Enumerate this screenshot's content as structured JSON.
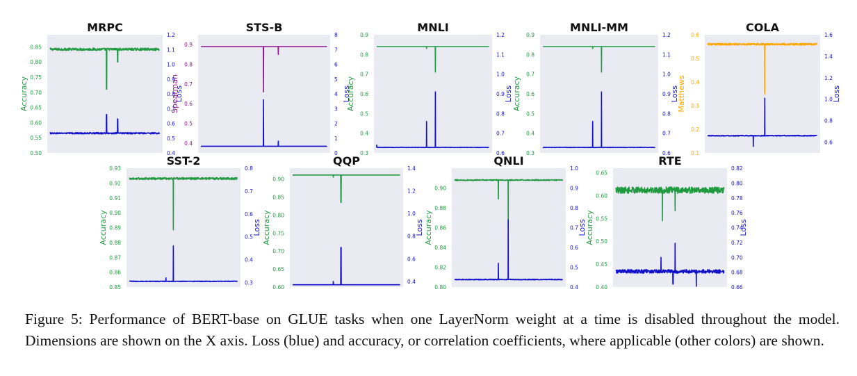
{
  "colors": {
    "loss": "#1010cc",
    "green": "#1f9a3f",
    "purple": "#8b168b",
    "orange": "#ffa500",
    "panel_bg": "#eaeaf2"
  },
  "caption": {
    "text": "Figure 5: Performance of BERT-base on GLUE tasks when one LayerNorm weight at a time is disabled throughout the model. Dimensions are shown on the X axis. Loss (blue) and accuracy, or correlation coefficients, where applicable (other colors) are shown."
  },
  "chart_data": [
    {
      "type": "line",
      "title": "MRPC",
      "x_label": "",
      "x_range": [
        0,
        768
      ],
      "left": {
        "label": "Accuracy",
        "color": "green",
        "ticks": [
          "0.50",
          "0.55",
          "0.60",
          "0.65",
          "0.70",
          "0.75",
          "0.80",
          "0.85"
        ],
        "tick_values": [
          0.5,
          0.55,
          0.6,
          0.65,
          0.7,
          0.75,
          0.8,
          0.85
        ],
        "range": [
          0.5,
          0.89
        ]
      },
      "right": {
        "label": "Loss",
        "ticks": [
          "0.4",
          "0.5",
          "0.6",
          "0.7",
          "0.8",
          "0.9",
          "1.0",
          "1.1",
          "1.2"
        ],
        "tick_values": [
          0.4,
          0.5,
          0.6,
          0.7,
          0.8,
          0.9,
          1.0,
          1.1,
          1.2
        ],
        "range": [
          0.4,
          1.2
        ]
      },
      "series": [
        {
          "axis": "left",
          "color": "green",
          "base": 0.842,
          "noise": 0.004,
          "spikes": [
            [
              395,
              0.71
            ],
            [
              473,
              0.8
            ]
          ]
        },
        {
          "axis": "right",
          "color": "loss",
          "base": 0.533,
          "noise": 0.005,
          "spikes": [
            [
              395,
              0.66
            ],
            [
              473,
              0.63
            ]
          ]
        }
      ]
    },
    {
      "type": "line",
      "title": "STS-B",
      "x_label": "",
      "x_range": [
        0,
        768
      ],
      "left": {
        "label": "Spearman",
        "color": "purple",
        "ticks": [
          "0.4",
          "0.5",
          "0.6",
          "0.7",
          "0.8",
          "0.9"
        ],
        "tick_values": [
          0.4,
          0.5,
          0.6,
          0.7,
          0.8,
          0.9
        ],
        "range": [
          0.35,
          0.95
        ]
      },
      "right": {
        "label": "Loss",
        "ticks": [
          "0",
          "1",
          "2",
          "3",
          "4",
          "5",
          "6",
          "7",
          "8"
        ],
        "tick_values": [
          0,
          1,
          2,
          3,
          4,
          5,
          6,
          7,
          8
        ],
        "range": [
          0,
          8
        ]
      },
      "series": [
        {
          "axis": "left",
          "color": "purple",
          "base": 0.89,
          "noise": 0.0,
          "spikes": [
            [
              380,
              0.66
            ],
            [
              470,
              0.85
            ]
          ]
        },
        {
          "axis": "right",
          "color": "loss",
          "base": 0.45,
          "noise": 0.0,
          "spikes": [
            [
              380,
              3.6
            ],
            [
              470,
              0.8
            ]
          ]
        }
      ]
    },
    {
      "type": "line",
      "title": "MNLI",
      "x_label": "",
      "x_range": [
        0,
        768
      ],
      "left": {
        "label": "Accuracy",
        "color": "green",
        "ticks": [
          "0.3",
          "0.4",
          "0.5",
          "0.6",
          "0.7",
          "0.8",
          "0.9"
        ],
        "tick_values": [
          0.3,
          0.4,
          0.5,
          0.6,
          0.7,
          0.8,
          0.9
        ],
        "range": [
          0.3,
          0.9
        ]
      },
      "right": {
        "label": "Loss",
        "ticks": [
          "0.6",
          "0.7",
          "0.8",
          "0.9",
          "1.0",
          "1.1",
          "1.2"
        ],
        "tick_values": [
          0.6,
          0.7,
          0.8,
          0.9,
          1.0,
          1.1,
          1.2
        ],
        "range": [
          0.6,
          1.2
        ]
      },
      "series": [
        {
          "axis": "left",
          "color": "green",
          "base": 0.84,
          "noise": 0.0,
          "spikes": [
            [
              340,
              0.83
            ],
            [
              400,
              0.71
            ]
          ]
        },
        {
          "axis": "right",
          "color": "loss",
          "base": 0.628,
          "noise": 0.001,
          "spikes": [
            [
              0,
              0.64
            ],
            [
              340,
              0.76
            ],
            [
              400,
              0.91
            ]
          ]
        }
      ]
    },
    {
      "type": "line",
      "title": "MNLI-MM",
      "x_label": "",
      "x_range": [
        0,
        768
      ],
      "left": {
        "label": "Accuracy",
        "color": "green",
        "ticks": [
          "0.3",
          "0.4",
          "0.5",
          "0.6",
          "0.7",
          "0.8",
          "0.9"
        ],
        "tick_values": [
          0.3,
          0.4,
          0.5,
          0.6,
          0.7,
          0.8,
          0.9
        ],
        "range": [
          0.3,
          0.9
        ]
      },
      "right": {
        "label": "Loss",
        "ticks": [
          "0.6",
          "0.7",
          "0.8",
          "0.9",
          "1.0",
          "1.1",
          "1.2"
        ],
        "tick_values": [
          0.6,
          0.7,
          0.8,
          0.9,
          1.0,
          1.1,
          1.2
        ],
        "range": [
          0.6,
          1.2
        ]
      },
      "series": [
        {
          "axis": "left",
          "color": "green",
          "base": 0.84,
          "noise": 0.0,
          "spikes": [
            [
              340,
              0.83
            ],
            [
              400,
              0.71
            ]
          ]
        },
        {
          "axis": "right",
          "color": "loss",
          "base": 0.628,
          "noise": 0.001,
          "spikes": [
            [
              340,
              0.76
            ],
            [
              400,
              0.91
            ]
          ]
        }
      ]
    },
    {
      "type": "line",
      "title": "COLA",
      "x_label": "",
      "x_range": [
        0,
        768
      ],
      "left": {
        "label": "Matthews",
        "color": "orange",
        "ticks": [
          "0.1",
          "0.2",
          "0.3",
          "0.4",
          "0.5",
          "0.6"
        ],
        "tick_values": [
          0.1,
          0.2,
          0.3,
          0.4,
          0.5,
          0.6
        ],
        "range": [
          0.1,
          0.6
        ]
      },
      "right": {
        "label": "Loss",
        "ticks": [
          "0.6",
          "0.8",
          "1.0",
          "1.2",
          "1.4",
          "1.6"
        ],
        "tick_values": [
          0.6,
          0.8,
          1.0,
          1.2,
          1.4,
          1.6
        ],
        "range": [
          0.5,
          1.6
        ]
      },
      "series": [
        {
          "axis": "left",
          "color": "orange",
          "base": 0.56,
          "noise": 0.004,
          "spikes": [
            [
              400,
              0.35
            ]
          ]
        },
        {
          "axis": "right",
          "color": "loss",
          "base": 0.66,
          "noise": 0.004,
          "spikes": [
            [
              320,
              0.56
            ],
            [
              400,
              1.01
            ]
          ]
        }
      ]
    },
    {
      "type": "line",
      "title": "SST-2",
      "x_label": "",
      "x_range": [
        0,
        768
      ],
      "left": {
        "label": "Accuracy",
        "color": "green",
        "ticks": [
          "0.85",
          "0.86",
          "0.87",
          "0.88",
          "0.89",
          "0.90",
          "0.91",
          "0.92",
          "0.93"
        ],
        "tick_values": [
          0.85,
          0.86,
          0.87,
          0.88,
          0.89,
          0.9,
          0.91,
          0.92,
          0.93
        ],
        "range": [
          0.85,
          0.93
        ]
      },
      "right": {
        "label": "Loss",
        "ticks": [
          "0.3",
          "0.4",
          "0.5",
          "0.6",
          "0.7",
          "0.8"
        ],
        "tick_values": [
          0.3,
          0.4,
          0.5,
          0.6,
          0.7,
          0.8
        ],
        "range": [
          0.28,
          0.8
        ]
      },
      "series": [
        {
          "axis": "left",
          "color": "green",
          "base": 0.923,
          "noise": 0.0007,
          "spikes": [
            [
              312,
              0.8885
            ]
          ]
        },
        {
          "axis": "right",
          "color": "loss",
          "base": 0.305,
          "noise": 0.0015,
          "spikes": [
            [
              260,
              0.32
            ],
            [
              312,
              0.46
            ]
          ]
        }
      ]
    },
    {
      "type": "line",
      "title": "QQP",
      "x_label": "",
      "x_range": [
        0,
        768
      ],
      "left": {
        "label": "Accuracy",
        "color": "green",
        "ticks": [
          "0.60",
          "0.65",
          "0.70",
          "0.75",
          "0.80",
          "0.85",
          "0.90"
        ],
        "tick_values": [
          0.6,
          0.65,
          0.7,
          0.75,
          0.8,
          0.85,
          0.9
        ],
        "range": [
          0.6,
          0.93
        ]
      },
      "right": {
        "label": "Loss",
        "ticks": [
          "0.4",
          "0.6",
          "0.8",
          "1.0",
          "1.2",
          "1.4"
        ],
        "tick_values": [
          0.4,
          0.6,
          0.8,
          1.0,
          1.2,
          1.4
        ],
        "range": [
          0.35,
          1.4
        ]
      },
      "series": [
        {
          "axis": "left",
          "color": "green",
          "base": 0.911,
          "noise": 0.0,
          "spikes": [
            [
              290,
              0.905
            ],
            [
              345,
              0.835
            ]
          ]
        },
        {
          "axis": "right",
          "color": "loss",
          "base": 0.37,
          "noise": 0.0,
          "spikes": [
            [
              290,
              0.4
            ],
            [
              345,
              0.7
            ]
          ]
        }
      ]
    },
    {
      "type": "line",
      "title": "QNLI",
      "x_label": "",
      "x_range": [
        0,
        768
      ],
      "left": {
        "label": "Accuracy",
        "color": "green",
        "ticks": [
          "0.80",
          "0.82",
          "0.84",
          "0.86",
          "0.88",
          "0.90"
        ],
        "tick_values": [
          0.8,
          0.82,
          0.84,
          0.86,
          0.88,
          0.9
        ],
        "range": [
          0.8,
          0.92
        ]
      },
      "right": {
        "label": "Loss",
        "ticks": [
          "0.4",
          "0.5",
          "0.6",
          "0.7",
          "0.8",
          "0.9",
          "1.0"
        ],
        "tick_values": [
          0.4,
          0.5,
          0.6,
          0.7,
          0.8,
          0.9,
          1.0
        ],
        "range": [
          0.4,
          1.0
        ]
      },
      "series": [
        {
          "axis": "left",
          "color": "green",
          "base": 0.908,
          "noise": 0.0005,
          "spikes": [
            [
              310,
              0.889
            ],
            [
              380,
              0.86
            ]
          ]
        },
        {
          "axis": "right",
          "color": "loss",
          "base": 0.438,
          "noise": 0.002,
          "spikes": [
            [
              310,
              0.52
            ],
            [
              380,
              0.74
            ]
          ]
        }
      ]
    },
    {
      "type": "line",
      "title": "RTE",
      "x_label": "",
      "x_range": [
        0,
        768
      ],
      "left": {
        "label": "Accuracy",
        "color": "green",
        "ticks": [
          "0.40",
          "0.45",
          "0.50",
          "0.55",
          "0.60",
          "0.65"
        ],
        "tick_values": [
          0.4,
          0.45,
          0.5,
          0.55,
          0.6,
          0.65
        ],
        "range": [
          0.4,
          0.66
        ]
      },
      "right": {
        "label": "Loss",
        "ticks": [
          "0.66",
          "0.68",
          "0.70",
          "0.72",
          "0.74",
          "0.76",
          "0.78",
          "0.80",
          "0.82"
        ],
        "tick_values": [
          0.66,
          0.68,
          0.7,
          0.72,
          0.74,
          0.76,
          0.78,
          0.8,
          0.82
        ],
        "range": [
          0.66,
          0.82
        ]
      },
      "series": [
        {
          "axis": "left",
          "color": "green",
          "base": 0.612,
          "noise": 0.007,
          "spikes": [
            [
              330,
              0.545
            ],
            [
              420,
              0.567
            ]
          ]
        },
        {
          "axis": "right",
          "color": "loss",
          "base": 0.681,
          "noise": 0.0025,
          "spikes": [
            [
              320,
              0.7
            ],
            [
              405,
              0.664
            ],
            [
              420,
              0.719
            ],
            [
              570,
              0.661
            ]
          ]
        }
      ]
    }
  ]
}
